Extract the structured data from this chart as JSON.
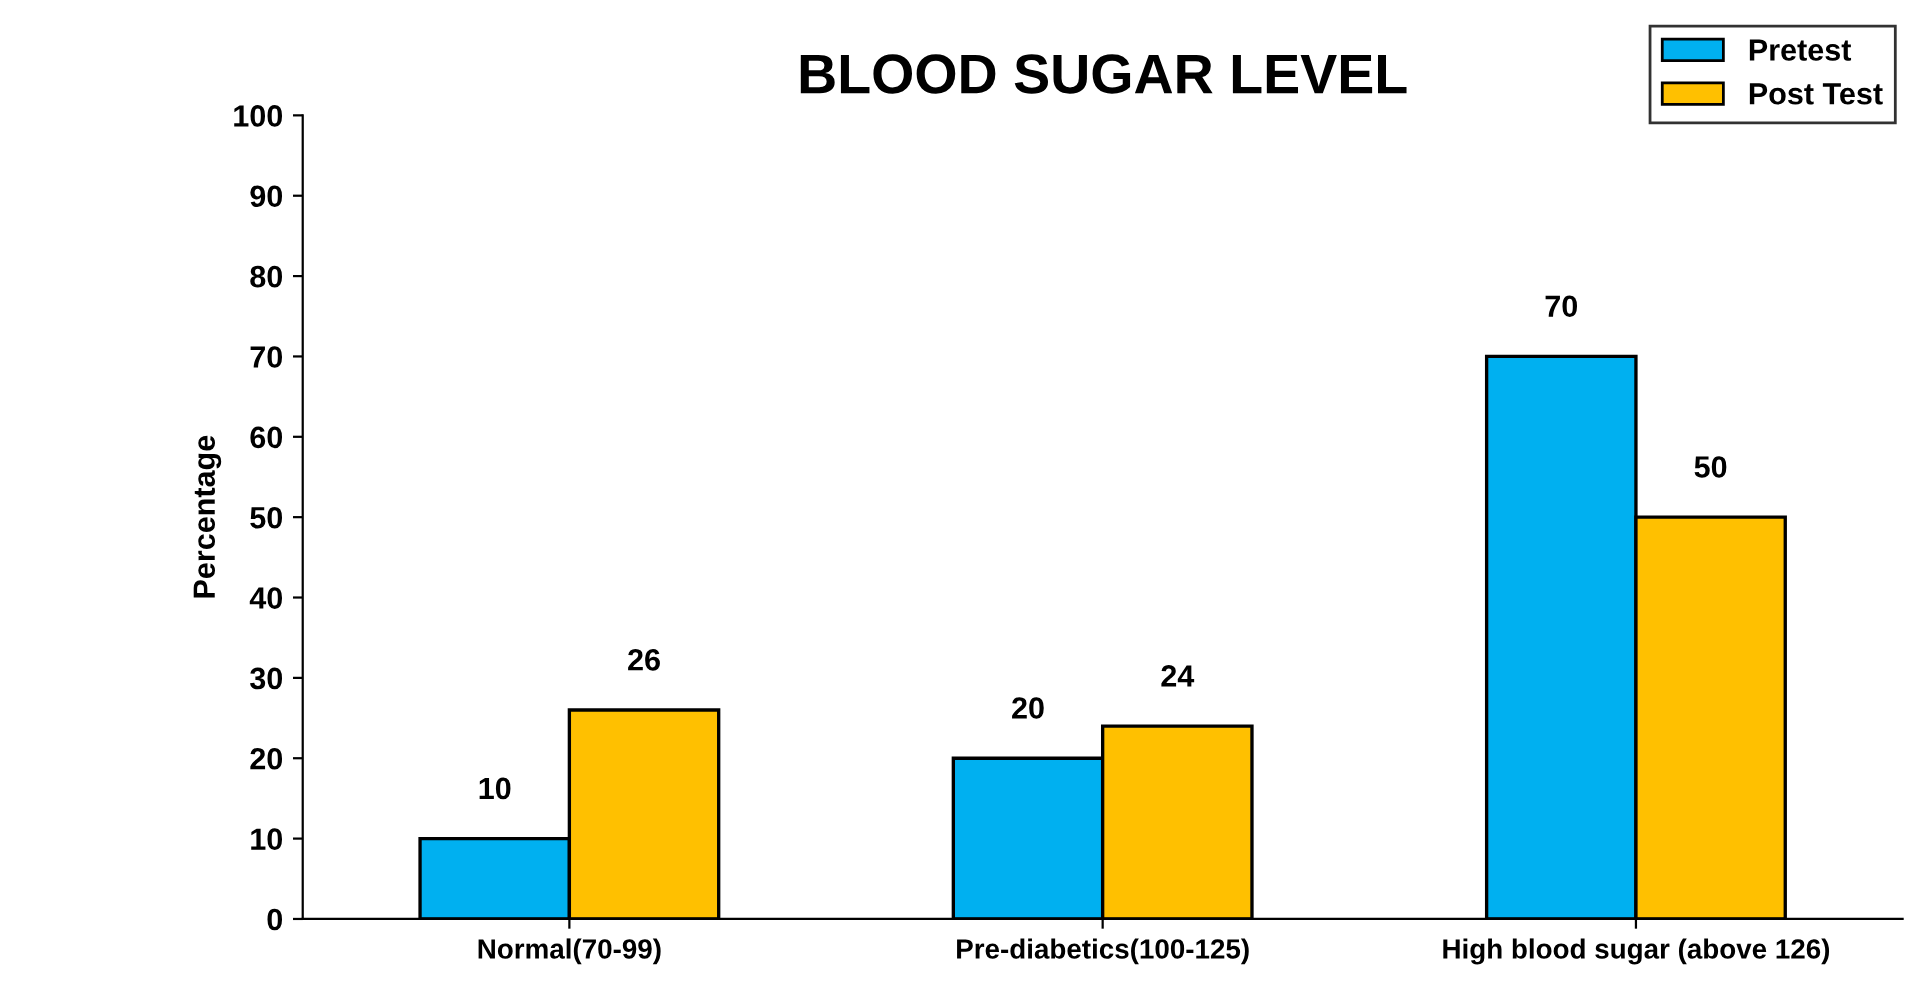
{
  "chart_data": {
    "type": "bar",
    "title": "BLOOD SUGAR LEVEL",
    "ylabel": "Percentage",
    "categories": [
      "Normal(70-99)",
      "Pre-diabetics(100-125)",
      "High blood sugar (above 126)"
    ],
    "series": [
      {
        "name": "Pretest",
        "color": "#00b0f0",
        "values": [
          10,
          20,
          70
        ]
      },
      {
        "name": "Post Test",
        "color": "#ffc000",
        "values": [
          26,
          24,
          50
        ]
      }
    ],
    "ylim": [
      0,
      100
    ],
    "yticks": [
      0,
      10,
      20,
      30,
      40,
      50,
      60,
      70,
      80,
      90,
      100
    ],
    "grid": false,
    "legend": "top right",
    "data_labels": true
  }
}
